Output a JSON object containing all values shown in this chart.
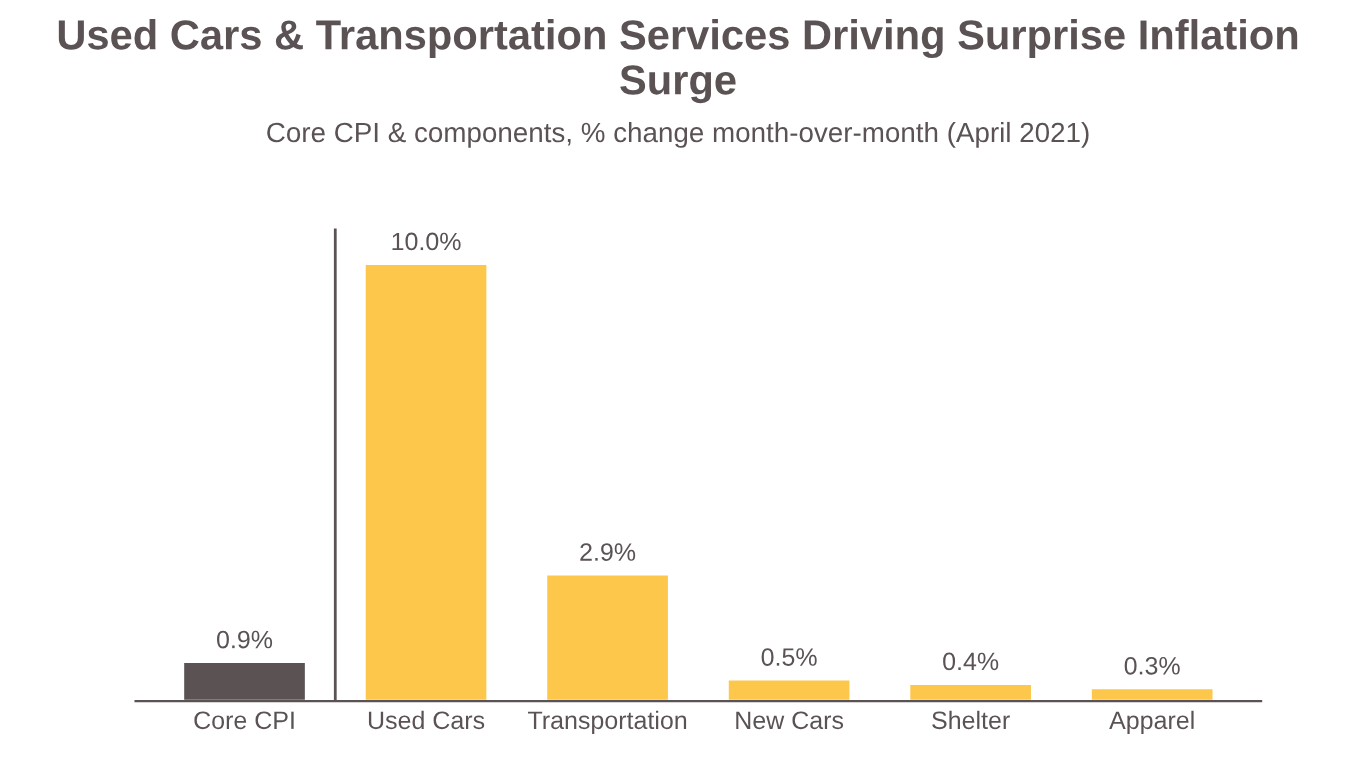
{
  "chart_data": {
    "type": "bar",
    "title": "Used Cars & Transportation Services Driving Surprise Inflation Surge",
    "subtitle": "Core CPI & components, % change month-over-month (April 2021)",
    "categories": [
      "Core CPI",
      "Used Cars",
      "Transportation",
      "New Cars",
      "Shelter",
      "Apparel"
    ],
    "values": [
      0.9,
      10.0,
      2.9,
      0.5,
      0.4,
      0.3
    ],
    "value_labels": [
      "0.9%",
      "10.0%",
      "2.9%",
      "0.5%",
      "0.4%",
      "0.3%"
    ],
    "colors": [
      "#5a5253",
      "#fcc74a",
      "#fcc74a",
      "#fcc74a",
      "#fcc74a",
      "#fcc74a"
    ],
    "grid": false,
    "legend": false
  }
}
